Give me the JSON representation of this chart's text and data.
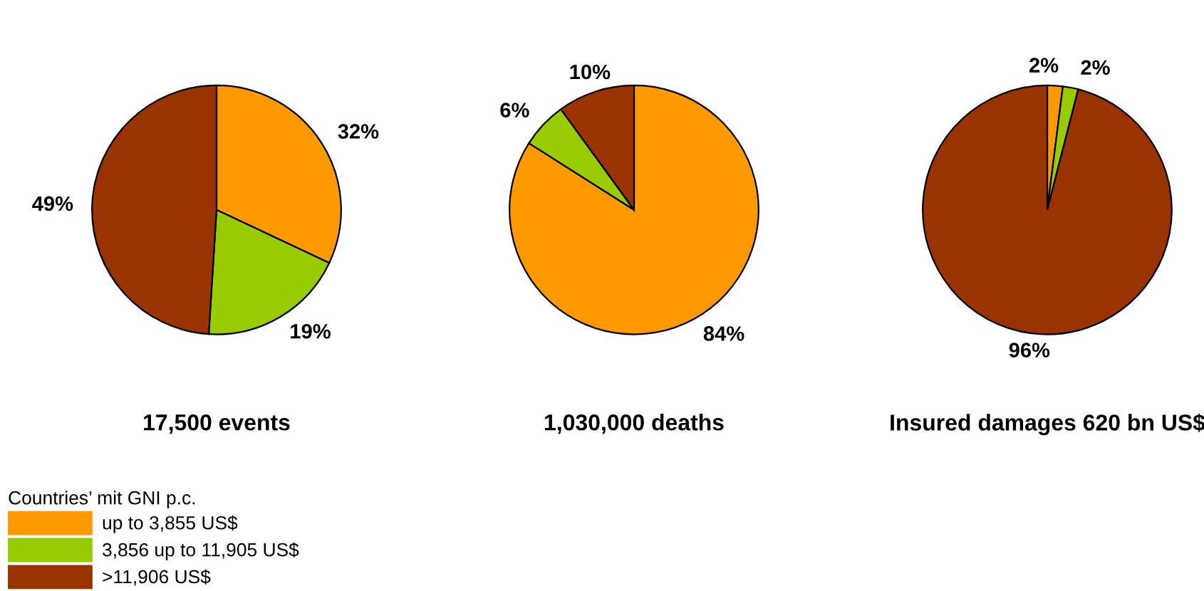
{
  "chart_data": [
    {
      "type": "pie",
      "title": "17,500 events",
      "categories": [
        "up to 3,855 US$",
        "3,856 up to 11,905 US$",
        ">11,906 US$"
      ],
      "values": [
        32,
        19,
        49
      ],
      "value_labels": [
        "32%",
        "19%",
        "49%"
      ],
      "colors": [
        "#ff9900",
        "#99cc00",
        "#993300"
      ],
      "legend": "bottom left",
      "legend_title": "Countries’ mit GNI p.c."
    },
    {
      "type": "pie",
      "title": "1,030,000 deaths",
      "categories": [
        null,
        null,
        null
      ],
      "values": [
        84,
        6,
        10
      ],
      "value_labels": [
        "84%",
        "6%",
        "10%"
      ],
      "colors": [
        "#ff9900",
        "#99cc00",
        "#993300"
      ]
    },
    {
      "type": "pie",
      "title": "Insured damages 620 bn US$",
      "categories": [
        null,
        null,
        null
      ],
      "values": [
        2,
        2,
        96
      ],
      "value_labels": [
        "2%",
        "2%",
        "96%"
      ],
      "colors": [
        "#ff9900",
        "#99cc00",
        "#993300"
      ]
    }
  ]
}
